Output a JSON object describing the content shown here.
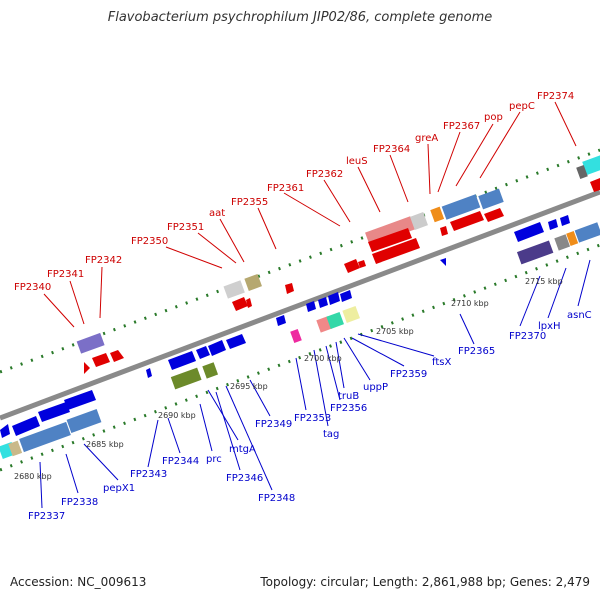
{
  "title": "Flavobacterium psychrophilum JIP02/86, complete genome",
  "accession": "Accession: NC_009613",
  "summary": "Topology: circular; Length: 2,861,988 bp; Genes: 2,479",
  "colors": {
    "forward": "#e00000",
    "reverse": "#0000dd",
    "backbone": "#8a8a8a",
    "tick": "#2a7a2a"
  },
  "scale_labels": [
    "2680 kbp",
    "2685 kbp",
    "2690 kbp",
    "2695 kbp",
    "2700 kbp",
    "2705 kbp",
    "2710 kbp",
    "2715 kbp"
  ],
  "top_labels": [
    "FP2340",
    "FP2341",
    "FP2342",
    "FP2350",
    "FP2351",
    "aat",
    "FP2355",
    "FP2361",
    "FP2362",
    "leuS",
    "FP2364",
    "greA",
    "FP2367",
    "pop",
    "pepC",
    "FP2374"
  ],
  "bottom_labels": [
    "FP2337",
    "FP2338",
    "pepX1",
    "FP2343",
    "FP2344",
    "prc",
    "mtgA",
    "FP2346",
    "FP2348",
    "FP2349",
    "FP2353",
    "tag",
    "FP2356",
    "truB",
    "uppP",
    "FP2359",
    "ftsX",
    "FP2365",
    "FP2370",
    "lpxH",
    "asnC"
  ]
}
